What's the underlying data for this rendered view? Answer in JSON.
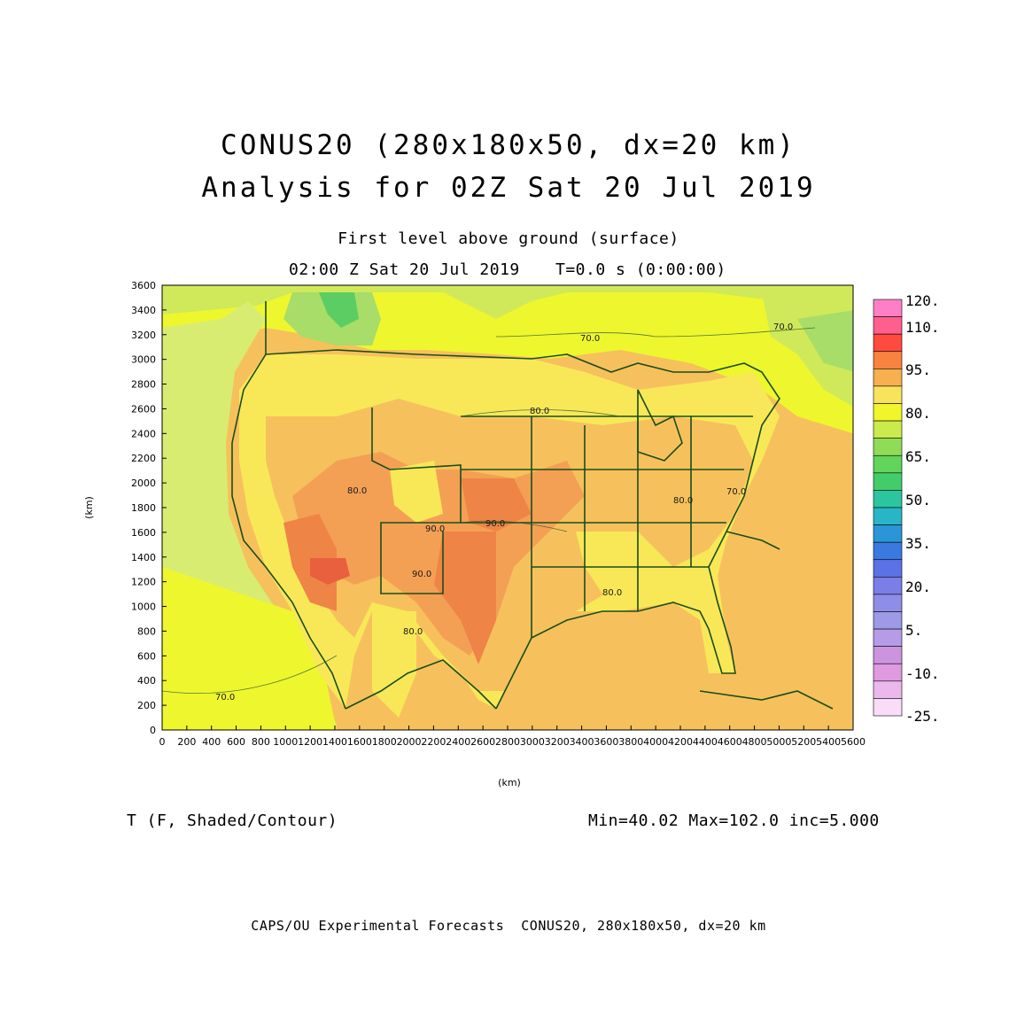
{
  "title": {
    "line1": "CONUS20 (280x180x50, dx=20 km)",
    "line2": "Analysis for 02Z Sat 20 Jul 2019"
  },
  "subtitle": {
    "level": "First level above ground (surface)",
    "time": "02:00 Z Sat 20 Jul 2019",
    "model_time": "T=0.0 s (0:00:00)"
  },
  "variable_label": "T (F, Shaded/Contour)",
  "stats": "Min=40.02 Max=102.0 inc=5.000",
  "footer": "CAPS/OU Experimental Forecasts  CONUS20, 280x180x50, dx=20 km",
  "map": {
    "x_axis_label": "(km)",
    "y_axis_label": "(km)",
    "x_ticks": [
      "0",
      "200",
      "400",
      "600",
      "800",
      "1000",
      "1200",
      "1400",
      "1600",
      "1800",
      "2000",
      "2200",
      "2400",
      "2600",
      "2800",
      "3000",
      "3200",
      "3400",
      "3600",
      "3800",
      "4000",
      "4200",
      "4400",
      "4600",
      "4800",
      "5000",
      "5200",
      "5400",
      "5600"
    ],
    "y_ticks": [
      "0",
      "200",
      "400",
      "600",
      "800",
      "1000",
      "1200",
      "1400",
      "1600",
      "1800",
      "2000",
      "2200",
      "2400",
      "2600",
      "2800",
      "3000",
      "3200",
      "3400",
      "3600"
    ],
    "x_range_km": [
      0,
      5600
    ],
    "y_range_km": [
      0,
      3600
    ],
    "contour_labels": [
      "70.0",
      "70.0",
      "70.0",
      "80.0",
      "80.0",
      "80.0",
      "80.0",
      "90.0",
      "90.0",
      "90.0",
      "80.0",
      "70.0"
    ],
    "colors": {
      "land_outline": "#1a4d1a",
      "ocean_cool": "#d8ec72",
      "temp_65": "#eef62e",
      "temp_75": "#f8e858",
      "temp_80": "#f6c15c",
      "temp_85": "#f3a055",
      "temp_90": "#ee8446",
      "temp_95": "#e8603e",
      "temp_100": "#e4404a",
      "temp_55": "#a7dd68",
      "temp_45": "#5ccd62"
    }
  },
  "colorbar": {
    "labels": [
      "120.",
      "110.",
      "95.",
      "80.",
      "65.",
      "50.",
      "35.",
      "20.",
      "5.",
      "-10.",
      "-25."
    ],
    "swatches": [
      "#ff7fc6",
      "#ff5f8c",
      "#ff4a3f",
      "#f8823f",
      "#f6b050",
      "#f8e35c",
      "#f0f52c",
      "#cbea4e",
      "#90dc56",
      "#62d45a",
      "#42cd6a",
      "#2bc6a0",
      "#28b6c6",
      "#2a96d8",
      "#3a7ae0",
      "#5a72e6",
      "#7c7ee8",
      "#8e8ee8",
      "#9e9ae8",
      "#b69ce6",
      "#cc94de",
      "#e09ae0",
      "#eab8ea",
      "#f8dcf8"
    ]
  }
}
